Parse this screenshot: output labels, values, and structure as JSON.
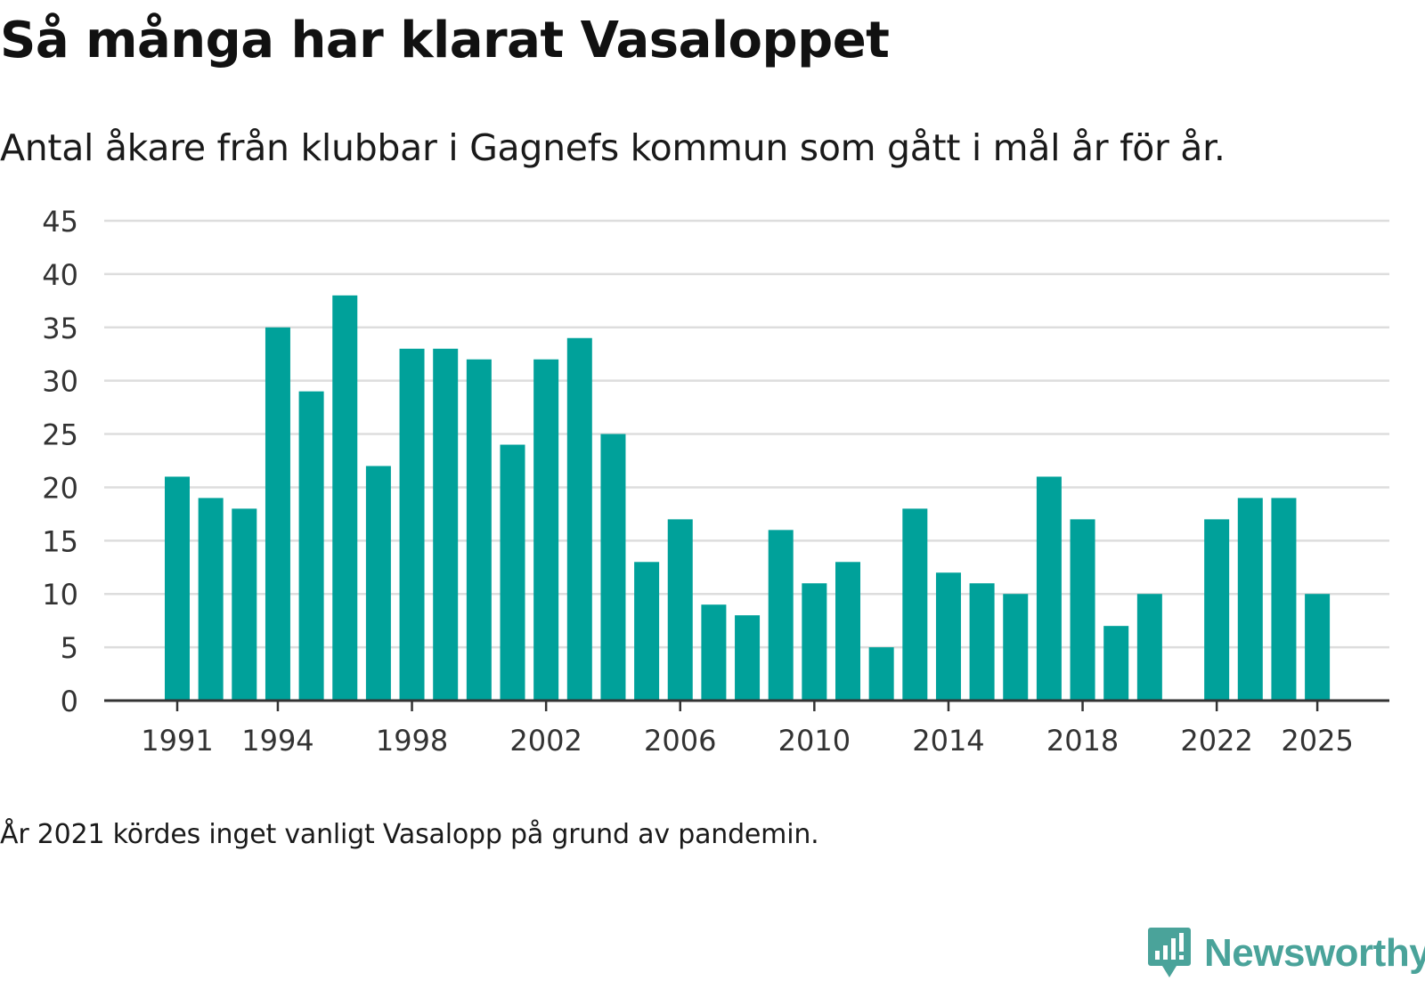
{
  "header": {
    "title": "Så många har klarat Vasaloppet",
    "subtitle": "Antal åkare från klubbar i Gagnefs kommun som gått i mål år för år."
  },
  "footer": {
    "note": "År 2021 kördes inget vanligt Vasalopp på grund av pandemin.",
    "brand": "Newsworthy"
  },
  "colors": {
    "bar": "#00a19a",
    "grid": "#dddddd",
    "axis": "#333333",
    "text": "#333333",
    "brand": "#4aa39a"
  },
  "chart_data": {
    "type": "bar",
    "title": "Så många har klarat Vasaloppet",
    "subtitle": "Antal åkare från klubbar i Gagnefs kommun som gått i mål år för år.",
    "xlabel": "",
    "ylabel": "",
    "ylim": [
      0,
      45
    ],
    "yticks": [
      0,
      5,
      10,
      15,
      20,
      25,
      30,
      35,
      40,
      45
    ],
    "xticks": [
      1991,
      1994,
      1998,
      2002,
      2006,
      2010,
      2014,
      2018,
      2022,
      2025
    ],
    "grid": true,
    "legend": "none",
    "categories": [
      1991,
      1992,
      1993,
      1994,
      1995,
      1996,
      1997,
      1998,
      1999,
      2000,
      2001,
      2002,
      2003,
      2004,
      2005,
      2006,
      2007,
      2008,
      2009,
      2010,
      2011,
      2012,
      2013,
      2014,
      2015,
      2016,
      2017,
      2018,
      2019,
      2020,
      2021,
      2022,
      2023,
      2024,
      2025
    ],
    "values": [
      21,
      19,
      18,
      35,
      29,
      38,
      22,
      33,
      33,
      32,
      24,
      32,
      34,
      25,
      13,
      17,
      9,
      8,
      16,
      11,
      13,
      5,
      18,
      12,
      11,
      10,
      21,
      17,
      7,
      10,
      null,
      17,
      19,
      19,
      10
    ]
  }
}
